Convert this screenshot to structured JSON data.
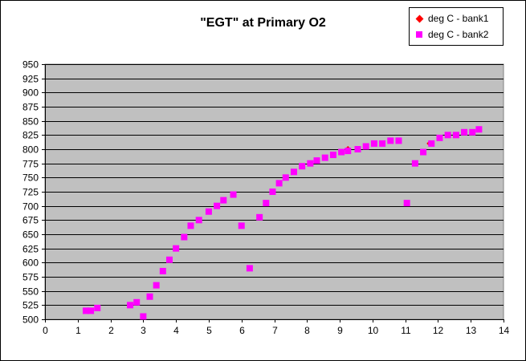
{
  "chart_data": {
    "type": "scatter",
    "title": "\"EGT\" at Primary O2",
    "xlabel": "",
    "ylabel": "",
    "xlim": [
      0,
      14
    ],
    "ylim": [
      500,
      950
    ],
    "x_ticks": [
      0,
      1,
      2,
      3,
      4,
      5,
      6,
      7,
      8,
      9,
      10,
      11,
      12,
      13,
      14
    ],
    "y_ticks": [
      500,
      525,
      550,
      575,
      600,
      625,
      650,
      675,
      700,
      725,
      750,
      775,
      800,
      825,
      850,
      875,
      900,
      925,
      950
    ],
    "grid": "horizontal",
    "legend": "top-right",
    "plot_background": "#c0c0c0",
    "series": [
      {
        "name": "deg C - bank1",
        "marker": "diamond",
        "color": "#ff0000",
        "points": [
          [
            9.25,
            800
          ],
          [
            11.75,
            810
          ]
        ]
      },
      {
        "name": "deg C - bank2",
        "marker": "square",
        "color": "#ff00ff",
        "points": [
          [
            1.25,
            515
          ],
          [
            1.4,
            515
          ],
          [
            1.6,
            520
          ],
          [
            2.6,
            525
          ],
          [
            2.8,
            530
          ],
          [
            3.0,
            505
          ],
          [
            3.2,
            540
          ],
          [
            3.4,
            560
          ],
          [
            3.6,
            585
          ],
          [
            3.8,
            605
          ],
          [
            4.0,
            625
          ],
          [
            4.25,
            645
          ],
          [
            4.45,
            665
          ],
          [
            4.7,
            675
          ],
          [
            5.0,
            690
          ],
          [
            5.25,
            700
          ],
          [
            5.45,
            710
          ],
          [
            5.75,
            720
          ],
          [
            6.0,
            665
          ],
          [
            6.25,
            590
          ],
          [
            6.55,
            680
          ],
          [
            6.75,
            705
          ],
          [
            6.95,
            725
          ],
          [
            7.15,
            740
          ],
          [
            7.35,
            750
          ],
          [
            7.6,
            760
          ],
          [
            7.85,
            770
          ],
          [
            8.1,
            775
          ],
          [
            8.3,
            780
          ],
          [
            8.55,
            785
          ],
          [
            8.8,
            790
          ],
          [
            9.05,
            795
          ],
          [
            9.25,
            797
          ],
          [
            9.55,
            800
          ],
          [
            9.8,
            805
          ],
          [
            10.05,
            810
          ],
          [
            10.3,
            810
          ],
          [
            10.55,
            815
          ],
          [
            10.8,
            815
          ],
          [
            11.05,
            705
          ],
          [
            11.3,
            775
          ],
          [
            11.55,
            795
          ],
          [
            11.8,
            810
          ],
          [
            12.05,
            820
          ],
          [
            12.3,
            825
          ],
          [
            12.55,
            825
          ],
          [
            12.8,
            830
          ],
          [
            13.05,
            830
          ],
          [
            13.25,
            835
          ]
        ]
      }
    ]
  }
}
